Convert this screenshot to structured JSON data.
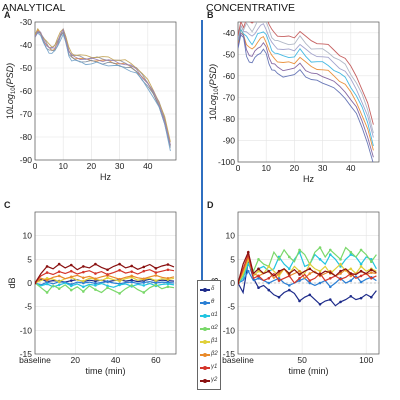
{
  "headers": {
    "left": "ANALYTICAL",
    "right": "CONCENTRATIVE"
  },
  "chart_data": [
    {
      "id": "A",
      "panel_label": "A",
      "type": "line",
      "xlabel": "Hz",
      "ylabel": "10Log10(PSD)",
      "ylabel_parts": [
        "10",
        "Log",
        "10",
        "(PSD)"
      ],
      "xlim": [
        0,
        50
      ],
      "ylim": [
        -90,
        -30
      ],
      "xticks": [
        0,
        10,
        20,
        30,
        40
      ],
      "yticks": [
        -30,
        -40,
        -50,
        -60,
        -70,
        -80,
        -90
      ],
      "colors": [
        "#e8862a",
        "#8a8fa8",
        "#7a8a9a",
        "#c0a050",
        "#6fa0c8",
        "#9a7fb0"
      ],
      "x": [
        0,
        1,
        2,
        3,
        4,
        5,
        6,
        7,
        8,
        9,
        10,
        11,
        12,
        13,
        14,
        16,
        18,
        20,
        22,
        24,
        26,
        28,
        30,
        32,
        34,
        36,
        38,
        40,
        42,
        44,
        46,
        48
      ],
      "mean": [
        -36,
        -34,
        -35,
        -38,
        -40,
        -41.5,
        -42,
        -41.5,
        -39,
        -36,
        -34,
        -38,
        -43,
        -45,
        -45.5,
        -46,
        -46.5,
        -46.5,
        -46.5,
        -47,
        -47,
        -47.5,
        -48,
        -48.5,
        -49.5,
        -51,
        -54,
        -57,
        -61,
        -66,
        -73,
        -84
      ],
      "offsets": [
        0,
        0.8,
        -0.8,
        1.5,
        -1.5,
        0.3
      ]
    },
    {
      "id": "B",
      "panel_label": "B",
      "type": "line",
      "xlabel": "Hz",
      "ylabel": "10Log10(PSD)",
      "ylabel_parts": [
        "10",
        "Log",
        "10",
        "(PSD)"
      ],
      "xlim": [
        0,
        50
      ],
      "ylim": [
        -100,
        -35
      ],
      "xticks": [
        0,
        10,
        20,
        30,
        40
      ],
      "yticks": [
        -40,
        -50,
        -60,
        -70,
        -80,
        -90,
        -100
      ],
      "colors": [
        "#e8862a",
        "#33b3e0",
        "#7a5a9a",
        "#9a9ac8",
        "#a8b0c0",
        "#5a6ab0",
        "#c05050"
      ],
      "x": [
        0,
        1,
        2,
        3,
        4,
        5,
        6,
        7,
        8,
        9,
        10,
        11,
        12,
        13,
        14,
        16,
        18,
        20,
        22,
        24,
        26,
        28,
        30,
        32,
        34,
        36,
        38,
        40,
        42,
        44,
        46,
        48
      ],
      "mean": [
        -45,
        -39,
        -41,
        -45,
        -47,
        -48,
        -46,
        -44,
        -43,
        -42,
        -44,
        -48,
        -51,
        -52,
        -53,
        -54,
        -54,
        -54,
        -51,
        -54,
        -56,
        -56.5,
        -57,
        -58,
        -60,
        -62,
        -64,
        -68,
        -72,
        -78,
        -85,
        -95
      ],
      "offsets": [
        0,
        3,
        -3,
        6,
        9,
        -6,
        12
      ]
    },
    {
      "id": "C",
      "panel_label": "C",
      "type": "line",
      "xlabel": "time (min)",
      "ylabel": "dB",
      "xlim": [
        0,
        70
      ],
      "ylim": [
        -15,
        15
      ],
      "xticks": [
        0,
        20,
        40,
        60
      ],
      "xticklabels": [
        "baseline",
        "20",
        "40",
        "60"
      ],
      "yticks": [
        10,
        5,
        0,
        -5,
        -10,
        -15
      ],
      "x": [
        0,
        3,
        6,
        9,
        12,
        15,
        18,
        21,
        24,
        27,
        30,
        33,
        36,
        39,
        42,
        45,
        48,
        51,
        54,
        57,
        60,
        63,
        66,
        69
      ],
      "series": [
        {
          "name": "δ",
          "color": "#1d2b8a",
          "values": [
            0,
            0.8,
            0.3,
            0.5,
            0.4,
            0.2,
            0.5,
            0.7,
            0.3,
            0.6,
            0.4,
            0.6,
            0.3,
            0.5,
            0.7,
            0.4,
            0.6,
            0.3,
            0.5,
            0.8,
            0.4,
            0.6,
            0.5,
            0.4
          ]
        },
        {
          "name": "θ",
          "color": "#2b7fd4",
          "values": [
            0,
            -0.4,
            0.2,
            -0.2,
            0.3,
            0.1,
            -0.3,
            0.2,
            0,
            0.2,
            -0.1,
            0.1,
            0.3,
            0,
            -0.2,
            0.1,
            0.2,
            -0.1,
            0.1,
            0.3,
            0,
            0.2,
            0.1,
            0
          ]
        },
        {
          "name": "α1",
          "color": "#22c4e0",
          "values": [
            0,
            -0.6,
            -0.2,
            -0.8,
            -0.4,
            0,
            -0.6,
            -0.2,
            -0.8,
            -0.3,
            -0.5,
            -0.1,
            -0.6,
            -0.9,
            -0.4,
            -0.2,
            -0.7,
            -0.3,
            -0.5,
            -0.1,
            -0.6,
            -0.3,
            -0.2,
            -0.4
          ]
        },
        {
          "name": "α2",
          "color": "#7ad86a",
          "values": [
            0,
            -1,
            -2,
            -0.5,
            -1.2,
            -0.4,
            -1.5,
            -0.8,
            -1.8,
            -0.6,
            -1.4,
            -2,
            -1,
            -1.6,
            -2.2,
            -1.2,
            -0.5,
            -1.4,
            -2,
            -1,
            -0.4,
            -1.2,
            -0.8,
            -1
          ]
        },
        {
          "name": "β1",
          "color": "#e0d03a",
          "values": [
            0,
            0.5,
            1,
            0.8,
            0.3,
            0.9,
            1.2,
            0.6,
            0.4,
            1,
            0.8,
            0.5,
            1.1,
            0.7,
            0.4,
            0.9,
            1.2,
            0.6,
            0.8,
            1,
            0.5,
            0.9,
            0.7,
            1
          ]
        },
        {
          "name": "β2",
          "color": "#e88a2a",
          "values": [
            0,
            1,
            0.6,
            1.2,
            1.5,
            0.9,
            1.3,
            1.6,
            1.1,
            1.4,
            0.9,
            1.3,
            1.6,
            1.2,
            0.8,
            1.2,
            1.5,
            1.1,
            0.9,
            1.3,
            1.6,
            1.2,
            1,
            1.3
          ]
        },
        {
          "name": "γ1",
          "color": "#d4352a",
          "values": [
            0,
            1.5,
            2.2,
            1.8,
            2.4,
            2,
            2.5,
            1.9,
            2.3,
            2.6,
            2,
            2.4,
            1.8,
            2.2,
            2.7,
            2.1,
            2.4,
            1.9,
            2.5,
            2.8,
            2.2,
            2.5,
            2.8,
            2.6
          ]
        },
        {
          "name": "γ2",
          "color": "#8a1010",
          "values": [
            0,
            2,
            3.5,
            3,
            4,
            3.2,
            3.8,
            2.8,
            3.5,
            3.2,
            4,
            3.3,
            2.8,
            3.5,
            4,
            3.2,
            3.6,
            2.9,
            3.4,
            3.9,
            3.1,
            3.6,
            3.9,
            3.4
          ]
        }
      ]
    },
    {
      "id": "D",
      "panel_label": "D",
      "type": "line",
      "xlabel": "time (min)",
      "ylabel": "dB",
      "xlim": [
        0,
        110
      ],
      "ylim": [
        -15,
        15
      ],
      "xticks": [
        0,
        50,
        100
      ],
      "xticklabels": [
        "baseline",
        "50",
        "100"
      ],
      "yticks": [
        10,
        5,
        0,
        -5,
        -10,
        -15
      ],
      "x": [
        0,
        4,
        8,
        12,
        16,
        20,
        24,
        28,
        32,
        36,
        40,
        44,
        48,
        52,
        56,
        60,
        64,
        68,
        72,
        76,
        80,
        84,
        88,
        92,
        96,
        100,
        104,
        108
      ],
      "series": [
        {
          "name": "δ",
          "color": "#1d2b8a",
          "values": [
            0,
            -2,
            4.5,
            1,
            -1,
            -0.5,
            -1.5,
            -2.5,
            -3,
            -2,
            -1.5,
            -2.2,
            -3.8,
            -3,
            -2.5,
            -3.5,
            -4.5,
            -3.8,
            -3.5,
            -4.8,
            -4,
            -3.5,
            -2.8,
            -3.5,
            -3.2,
            -2.4,
            -3,
            -1.6
          ]
        },
        {
          "name": "θ",
          "color": "#2b7fd4",
          "values": [
            0,
            0.5,
            2.5,
            0.5,
            1,
            0.5,
            0,
            0.5,
            1,
            0,
            -0.5,
            0,
            0.5,
            1,
            0,
            -0.5,
            0,
            0.5,
            -0.8,
            0,
            1,
            0,
            0.5,
            1.5,
            0.2,
            0.8,
            1.2,
            0.5
          ]
        },
        {
          "name": "α1",
          "color": "#22c4e0",
          "values": [
            0,
            1,
            4,
            2,
            3,
            3.5,
            2.5,
            3,
            5.5,
            4,
            3,
            5,
            6.5,
            3.5,
            4,
            6,
            5,
            4,
            6,
            5,
            3.5,
            5,
            6,
            5.5,
            4,
            5.5,
            5,
            3
          ]
        },
        {
          "name": "α2",
          "color": "#7ad86a",
          "values": [
            0,
            1.5,
            5,
            2.5,
            5,
            4,
            3.5,
            6.5,
            5,
            7,
            5.5,
            4.5,
            7,
            6,
            4,
            6.5,
            7.5,
            5.5,
            7,
            6,
            5,
            7.5,
            6.5,
            5.5,
            7,
            6,
            4.5,
            6
          ]
        },
        {
          "name": "β1",
          "color": "#e0d03a",
          "values": [
            0,
            2,
            5,
            1.5,
            2.5,
            2,
            3.5,
            2.5,
            1.5,
            3,
            2,
            3.5,
            2.5,
            2,
            4,
            3,
            2.5,
            3.5,
            2,
            3,
            4,
            2.5,
            3,
            2,
            3.5,
            2.5,
            3,
            2.5
          ]
        },
        {
          "name": "β2",
          "color": "#e88a2a",
          "values": [
            0,
            2.5,
            5.5,
            2,
            1.5,
            2,
            2.5,
            1,
            2,
            3,
            1.5,
            2,
            2.5,
            1,
            2,
            2.5,
            1.5,
            2,
            2.5,
            1.5,
            2,
            2.8,
            1.5,
            2,
            2.5,
            1.8,
            2.2,
            2
          ]
        },
        {
          "name": "γ1",
          "color": "#d4352a",
          "values": [
            0,
            3,
            6,
            1,
            1.5,
            0.5,
            1,
            2,
            0.5,
            1,
            1.5,
            0,
            1,
            1.8,
            0.5,
            1,
            2,
            0.5,
            1,
            1.5,
            0.8,
            1.2,
            2,
            1,
            1.5,
            2,
            1,
            1.5
          ]
        },
        {
          "name": "γ2",
          "color": "#8a1010",
          "values": [
            0,
            4,
            6.5,
            2,
            3,
            2,
            2.5,
            1.5,
            2.5,
            3,
            2,
            2.8,
            1.8,
            2.5,
            3,
            2.2,
            1.8,
            2.5,
            2.2,
            1.5,
            2.5,
            3,
            2,
            1.8,
            2.5,
            2,
            2.8,
            2.2
          ]
        }
      ]
    }
  ]
}
